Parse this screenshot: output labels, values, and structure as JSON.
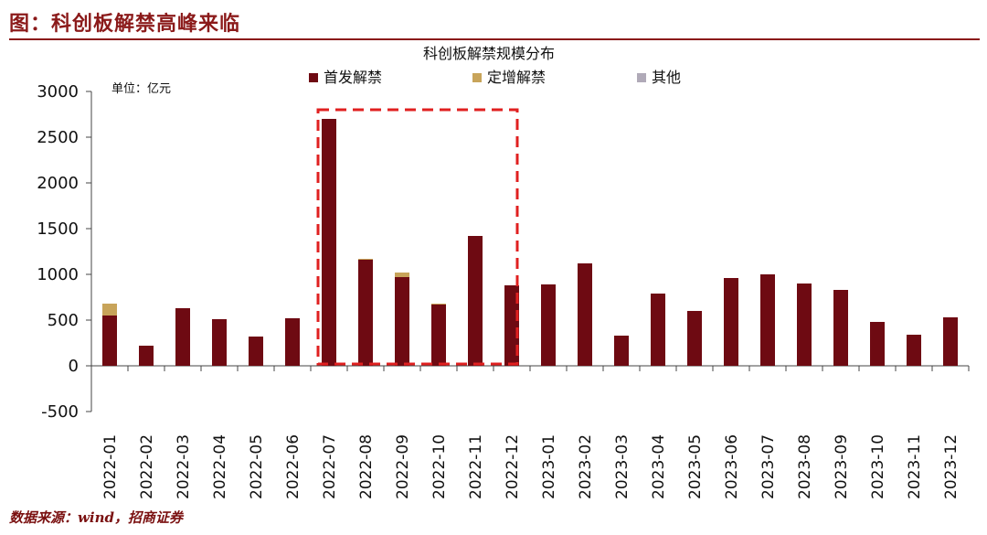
{
  "figure_title": "图：科创板解禁高峰来临",
  "source_note": "数据来源：wind，招商证券",
  "colors": {
    "title": "#8b1a1a",
    "ipo": "#6e0a12",
    "placement": "#c8a45a",
    "other": "#b0aab8",
    "highlight": "#e02020",
    "axis": "#444444",
    "text": "#111111"
  },
  "chart_data": {
    "type": "bar",
    "stacked": true,
    "title": "科创板解禁规模分布",
    "unit": "单位：亿元",
    "ylim": [
      -500,
      3000
    ],
    "yticks": [
      -500,
      0,
      500,
      1000,
      1500,
      2000,
      2500,
      3000
    ],
    "categories": [
      "2022-01",
      "2022-02",
      "2022-03",
      "2022-04",
      "2022-05",
      "2022-06",
      "2022-07",
      "2022-08",
      "2022-09",
      "2022-10",
      "2022-11",
      "2022-12",
      "2023-01",
      "2023-02",
      "2023-03",
      "2023-04",
      "2023-05",
      "2023-06",
      "2023-07",
      "2023-08",
      "2023-09",
      "2023-10",
      "2023-11",
      "2023-12"
    ],
    "series": [
      {
        "name": "首发解禁",
        "color": "#6e0a12",
        "values": [
          550,
          220,
          630,
          510,
          320,
          520,
          2700,
          1160,
          970,
          670,
          1420,
          880,
          890,
          1120,
          330,
          790,
          600,
          960,
          1000,
          900,
          830,
          480,
          340,
          530
        ]
      },
      {
        "name": "定增解禁",
        "color": "#c8a45a",
        "values": [
          130,
          0,
          0,
          0,
          0,
          0,
          0,
          10,
          50,
          10,
          0,
          0,
          0,
          0,
          0,
          0,
          0,
          0,
          0,
          0,
          0,
          0,
          0,
          0
        ]
      },
      {
        "name": "其他",
        "color": "#b0aab8",
        "values": [
          0,
          0,
          0,
          0,
          0,
          0,
          0,
          0,
          0,
          0,
          0,
          0,
          0,
          0,
          0,
          0,
          0,
          0,
          0,
          0,
          0,
          0,
          0,
          0
        ]
      }
    ],
    "legend_position": "top",
    "grid": false,
    "highlight_range": [
      "2022-07",
      "2022-12"
    ]
  }
}
